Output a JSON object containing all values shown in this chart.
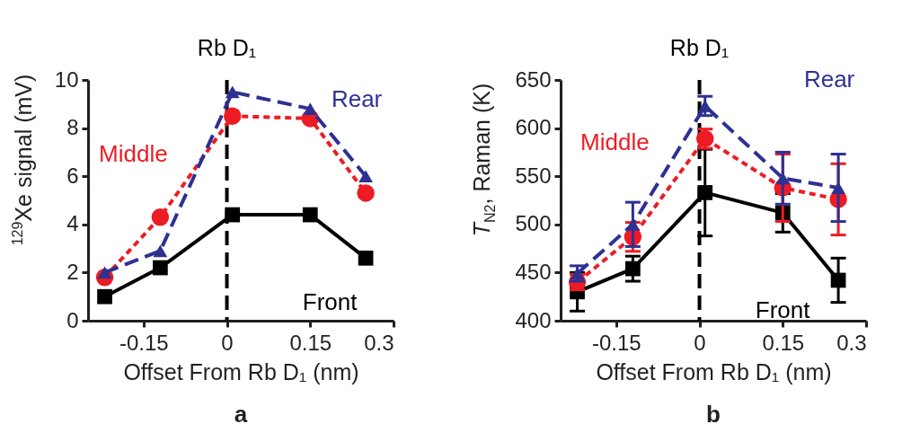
{
  "chart_data": [
    {
      "type": "line",
      "title": "a",
      "xlabel": "Offset From Rb D₁ (nm)",
      "ylabel": "$^{129}$Xe signal (mV)",
      "x": [
        -0.22,
        -0.12,
        0.01,
        0.15,
        0.25
      ],
      "xlim": [
        -0.25,
        0.3
      ],
      "xticks": [
        -0.15,
        0,
        0.15,
        0.3
      ],
      "ylim": [
        0,
        10
      ],
      "yticks": [
        0,
        2,
        4,
        6,
        8,
        10
      ],
      "series": [
        {
          "name": "Front",
          "color": "#000000",
          "marker": "square",
          "line_style": "solid",
          "values": [
            1.0,
            2.2,
            4.4,
            4.4,
            2.6
          ]
        },
        {
          "name": "Middle",
          "color": "#ed1c24",
          "marker": "circle",
          "line_style": "dashed",
          "values": [
            1.8,
            4.3,
            8.5,
            8.4,
            5.3
          ]
        },
        {
          "name": "Rear",
          "color": "#2e3192",
          "marker": "triangle",
          "line_style": "dashed",
          "values": [
            2.0,
            2.9,
            9.5,
            8.8,
            6.0
          ]
        }
      ],
      "ref_lines": [
        {
          "axis": "x",
          "value": 0,
          "label": "Rb D₁",
          "color": "#000000",
          "line_style": "dashed"
        }
      ]
    },
    {
      "type": "line",
      "title": "b",
      "xlabel": "Offset From Rb D₁ (nm)",
      "ylabel": "T$_{N2}$, Raman (K)",
      "x": [
        -0.22,
        -0.12,
        0.01,
        0.15,
        0.25
      ],
      "xlim": [
        -0.25,
        0.3
      ],
      "xticks": [
        -0.15,
        0,
        0.15,
        0.3
      ],
      "ylim": [
        400,
        650
      ],
      "yticks": [
        400,
        450,
        500,
        550,
        600,
        650
      ],
      "series": [
        {
          "name": "Front",
          "color": "#000000",
          "marker": "square",
          "line_style": "solid",
          "values": [
            430,
            454,
            533,
            512,
            442
          ],
          "errors": [
            20,
            13,
            45,
            20,
            23
          ]
        },
        {
          "name": "Middle",
          "color": "#ed1c24",
          "marker": "circle",
          "line_style": "dashed",
          "values": [
            440,
            487,
            589,
            538,
            526
          ],
          "errors": [
            8,
            15,
            10,
            35,
            37
          ]
        },
        {
          "name": "Rear",
          "color": "#2e3192",
          "marker": "triangle",
          "line_style": "dashed",
          "values": [
            449,
            500,
            623,
            548,
            538
          ],
          "errors": [
            8,
            23,
            10,
            27,
            35
          ]
        }
      ],
      "ref_lines": [
        {
          "axis": "x",
          "value": 0,
          "label": "Rb D₁",
          "color": "#000000",
          "line_style": "dashed"
        }
      ]
    }
  ]
}
